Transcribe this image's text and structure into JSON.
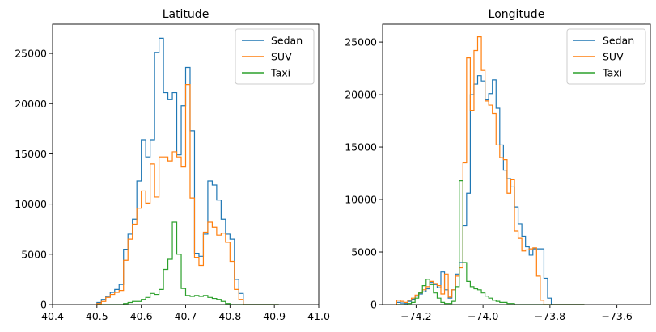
{
  "colors": {
    "sedan": "#1f77b4",
    "suv": "#ff7f0e",
    "taxi": "#2ca02c"
  },
  "chart_data": [
    {
      "type": "histogram",
      "title": "Latitude",
      "xlabel": "",
      "ylabel": "",
      "xlim": [
        40.4,
        41.0
      ],
      "ylim": [
        0,
        27900
      ],
      "xticks": [
        {
          "v": 40.4,
          "label": "40.4"
        },
        {
          "v": 40.5,
          "label": "40.5"
        },
        {
          "v": 40.6,
          "label": "40.6"
        },
        {
          "v": 40.7,
          "label": "40.7"
        },
        {
          "v": 40.8,
          "label": "40.8"
        },
        {
          "v": 40.9,
          "label": "40.9"
        },
        {
          "v": 41.0,
          "label": "41.0"
        }
      ],
      "yticks": [
        {
          "v": 0,
          "label": "0"
        },
        {
          "v": 5000,
          "label": "5000"
        },
        {
          "v": 10000,
          "label": "10000"
        },
        {
          "v": 15000,
          "label": "15000"
        },
        {
          "v": 20000,
          "label": "20000"
        },
        {
          "v": 25000,
          "label": "25000"
        }
      ],
      "grid": false,
      "legend": "top-right",
      "bin_edges": [
        40.5,
        40.51,
        40.52,
        40.53,
        40.54,
        40.55,
        40.56,
        40.57,
        40.58,
        40.59,
        40.6,
        40.61,
        40.62,
        40.63,
        40.64,
        40.65,
        40.66,
        40.67,
        40.68,
        40.69,
        40.7,
        40.71,
        40.72,
        40.73,
        40.74,
        40.75,
        40.76,
        40.77,
        40.78,
        40.79,
        40.8,
        40.81,
        40.82,
        40.83,
        40.84,
        40.85,
        40.86,
        40.87,
        40.88,
        40.89,
        40.9,
        40.91
      ],
      "series": [
        {
          "name": "Sedan",
          "color_key": "sedan",
          "values": [
            200,
            500,
            800,
            1200,
            1500,
            2000,
            5500,
            7000,
            8500,
            12300,
            16400,
            14700,
            16400,
            25100,
            26500,
            21100,
            20400,
            21100,
            14900,
            19800,
            23600,
            17300,
            5100,
            4800,
            7000,
            12300,
            11900,
            10400,
            8500,
            7000,
            6500,
            2500,
            1100,
            0,
            0,
            0,
            0,
            0,
            0,
            0,
            0
          ]
        },
        {
          "name": "SUV",
          "color_key": "suv",
          "values": [
            100,
            300,
            700,
            1000,
            1200,
            1400,
            4400,
            6500,
            8000,
            9600,
            11300,
            10100,
            14000,
            10700,
            14700,
            14700,
            14300,
            15200,
            14700,
            13700,
            21900,
            10600,
            4700,
            3900,
            7200,
            8200,
            7700,
            6900,
            7100,
            6200,
            4300,
            1500,
            500,
            0,
            0,
            0,
            0,
            0,
            0,
            0,
            0
          ]
        },
        {
          "name": "Taxi",
          "color_key": "taxi",
          "values": [
            0,
            0,
            0,
            0,
            0,
            0,
            100,
            200,
            300,
            300,
            500,
            700,
            1100,
            1000,
            1500,
            3500,
            4500,
            8200,
            5000,
            1600,
            900,
            800,
            900,
            800,
            900,
            700,
            600,
            500,
            300,
            100,
            0,
            0,
            0,
            0,
            0,
            0,
            0,
            0,
            0,
            0,
            0
          ]
        }
      ]
    },
    {
      "type": "histogram",
      "title": "Longitude",
      "xlabel": "",
      "ylabel": "",
      "xlim": [
        -74.3,
        -73.5
      ],
      "ylim": [
        0,
        26700
      ],
      "xticks": [
        {
          "v": -74.2,
          "label": "−74.2"
        },
        {
          "v": -74.0,
          "label": "−74.0"
        },
        {
          "v": -73.8,
          "label": "−73.8"
        },
        {
          "v": -73.6,
          "label": "−73.6"
        }
      ],
      "yticks": [
        {
          "v": 0,
          "label": "0"
        },
        {
          "v": 5000,
          "label": "5000"
        },
        {
          "v": 10000,
          "label": "10000"
        },
        {
          "v": 15000,
          "label": "15000"
        },
        {
          "v": 20000,
          "label": "20000"
        },
        {
          "v": 25000,
          "label": "25000"
        }
      ],
      "grid": false,
      "legend": "top-right",
      "bin_edges": [
        -74.258,
        -74.247,
        -74.236,
        -74.225,
        -74.214,
        -74.203,
        -74.192,
        -74.181,
        -74.17,
        -74.159,
        -74.148,
        -74.137,
        -74.126,
        -74.115,
        -74.104,
        -74.093,
        -74.082,
        -74.071,
        -74.06,
        -74.049,
        -74.038,
        -74.027,
        -74.016,
        -74.005,
        -73.994,
        -73.983,
        -73.972,
        -73.961,
        -73.95,
        -73.939,
        -73.928,
        -73.917,
        -73.906,
        -73.895,
        -73.884,
        -73.873,
        -73.862,
        -73.851,
        -73.84,
        -73.829,
        -73.818,
        -73.807,
        -73.796,
        -73.785,
        -73.774,
        -73.763,
        -73.752,
        -73.741,
        -73.73,
        -73.719,
        -73.708,
        -73.697
      ],
      "series": [
        {
          "name": "Sedan",
          "color_key": "sedan",
          "values": [
            200,
            150,
            100,
            300,
            500,
            800,
            1000,
            1200,
            1500,
            2100,
            1900,
            1600,
            3100,
            1400,
            600,
            1400,
            2900,
            4000,
            7500,
            10600,
            20000,
            21000,
            21800,
            21300,
            19500,
            20100,
            21400,
            18700,
            15200,
            12800,
            12000,
            11200,
            9300,
            7700,
            6500,
            5500,
            4700,
            5300,
            5300,
            5300,
            2500,
            600,
            0,
            0,
            0,
            0,
            0,
            0,
            0,
            0,
            0
          ]
        },
        {
          "name": "SUV",
          "color_key": "suv",
          "values": [
            400,
            300,
            200,
            400,
            600,
            900,
            1100,
            1400,
            1700,
            2200,
            2000,
            1800,
            1000,
            2900,
            700,
            1400,
            2700,
            3500,
            13500,
            23500,
            18500,
            24200,
            25500,
            22300,
            19400,
            19000,
            18200,
            15200,
            14000,
            13800,
            10600,
            11900,
            7000,
            6300,
            5100,
            5200,
            5300,
            5400,
            2700,
            400,
            0,
            0,
            0,
            0,
            0,
            0,
            0,
            0,
            0,
            0,
            0
          ]
        },
        {
          "name": "Taxi",
          "color_key": "taxi",
          "values": [
            0,
            0,
            0,
            100,
            200,
            600,
            1100,
            1800,
            2400,
            1900,
            1100,
            600,
            200,
            100,
            100,
            300,
            1700,
            11800,
            4000,
            2200,
            1700,
            1500,
            1400,
            1100,
            800,
            600,
            400,
            300,
            200,
            200,
            100,
            100,
            0,
            0,
            0,
            0,
            0,
            0,
            0,
            0,
            0,
            0,
            0,
            0,
            0,
            0,
            0,
            0,
            0,
            0,
            0
          ]
        }
      ]
    }
  ]
}
